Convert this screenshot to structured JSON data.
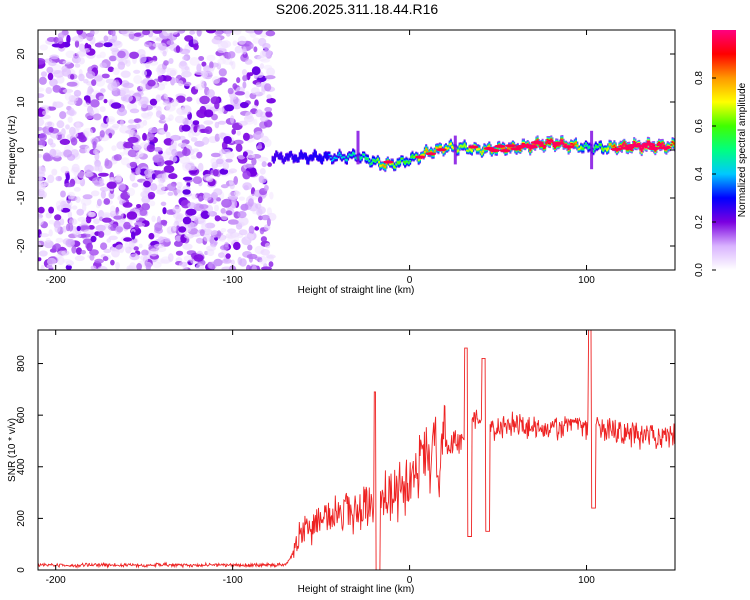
{
  "chart_data": [
    {
      "type": "heatmap",
      "title": "S206.2025.311.18.44.R16",
      "xlabel": "Height of straight line (km)",
      "ylabel": "Frequency (Hz)",
      "xlim": [
        -210,
        150
      ],
      "ylim": [
        -25,
        25
      ],
      "xticks": [
        -200,
        -100,
        0,
        100
      ],
      "yticks": [
        -20,
        -10,
        0,
        10,
        20
      ],
      "colorbar": {
        "label": "Normalized spectral amplitude",
        "range": [
          0,
          1
        ],
        "ticks": [
          "0.0",
          "0.2",
          "0.4",
          "0.6",
          "0.8"
        ],
        "colors": [
          "#ffffff",
          "#d9b3ff",
          "#7b00e0",
          "#0000ff",
          "#00c8ff",
          "#00ff80",
          "#40ff00",
          "#ffff00",
          "#ff9900",
          "#ff0000",
          "#ff0080"
        ]
      },
      "noise_region_km": [
        -210,
        -78
      ],
      "ridge": {
        "x": [
          -78,
          -60,
          -40,
          -30,
          -20,
          -15,
          -10,
          0,
          10,
          20,
          30,
          40,
          50,
          60,
          70,
          80,
          90,
          100,
          110,
          120,
          130,
          140,
          150
        ],
        "freq": [
          -1.5,
          -1.5,
          -1.5,
          -1.2,
          -2.5,
          -3.0,
          -3.0,
          -2.0,
          -0.5,
          0.5,
          0.5,
          0,
          0.3,
          0.5,
          1.0,
          1.5,
          1.0,
          0.5,
          0.5,
          0.7,
          0.8,
          0.8,
          0.8
        ],
        "amp": [
          0.3,
          0.4,
          0.45,
          0.5,
          0.55,
          0.7,
          0.6,
          0.55,
          0.7,
          0.65,
          0.6,
          0.65,
          0.7,
          0.7,
          0.85,
          0.9,
          0.8,
          0.5,
          0.6,
          0.85,
          0.95,
          0.9,
          0.7
        ]
      }
    },
    {
      "type": "line",
      "xlabel": "Height of straight line (km)",
      "ylabel": "SNR (10 * v/v)",
      "xlim": [
        -210,
        150
      ],
      "ylim": [
        0,
        930
      ],
      "xticks": [
        -200,
        -100,
        0,
        100
      ],
      "yticks": [
        0,
        200,
        400,
        600,
        800
      ],
      "series": [
        {
          "name": "SNR",
          "color": "#ee2222",
          "x": [
            -210,
            -200,
            -190,
            -180,
            -170,
            -160,
            -150,
            -140,
            -130,
            -120,
            -110,
            -100,
            -90,
            -80,
            -70,
            -66,
            -63,
            -60,
            -55,
            -50,
            -45,
            -40,
            -35,
            -30,
            -25,
            -20,
            -19,
            -18,
            -15,
            -10,
            -5,
            0,
            5,
            10,
            15,
            20,
            25,
            30,
            32,
            34,
            36,
            40,
            42,
            44,
            46,
            50,
            55,
            60,
            65,
            70,
            75,
            80,
            85,
            90,
            95,
            100,
            102,
            104,
            106,
            110,
            120,
            130,
            140,
            150
          ],
          "y": [
            18,
            20,
            16,
            22,
            18,
            20,
            17,
            21,
            19,
            18,
            20,
            19,
            18,
            20,
            19,
            60,
            120,
            150,
            170,
            190,
            200,
            210,
            230,
            240,
            250,
            280,
            690,
            0,
            270,
            290,
            310,
            350,
            380,
            420,
            450,
            470,
            490,
            510,
            860,
            130,
            600,
            560,
            820,
            150,
            560,
            540,
            560,
            570,
            560,
            560,
            550,
            560,
            555,
            560,
            560,
            555,
            930,
            240,
            560,
            540,
            530,
            520,
            520,
            515
          ]
        }
      ]
    }
  ]
}
